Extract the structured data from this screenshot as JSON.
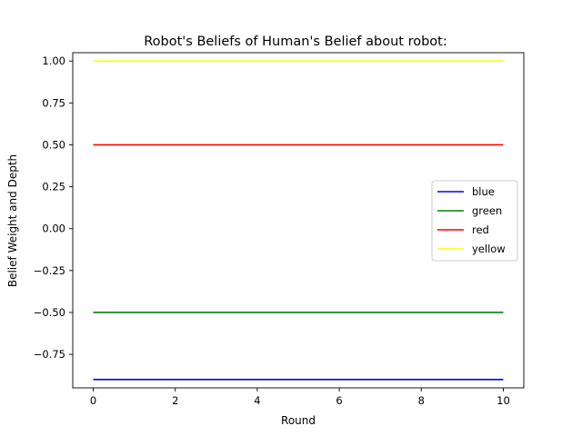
{
  "chart_data": {
    "type": "line",
    "title": "Robot's Beliefs of Human's Belief about robot:",
    "xlabel": "Round",
    "ylabel": "Belief Weight and Depth",
    "xlim": [
      -0.5,
      10.5
    ],
    "ylim": [
      -0.95,
      1.05
    ],
    "x_ticks": [
      0,
      2,
      4,
      6,
      8,
      10
    ],
    "y_ticks": [
      -0.75,
      -0.5,
      -0.25,
      0.0,
      0.25,
      0.5,
      0.75,
      1.0
    ],
    "x_tick_labels": [
      "0",
      "2",
      "4",
      "6",
      "8",
      "10"
    ],
    "y_tick_labels": [
      "−0.75",
      "−0.50",
      "−0.25",
      "0.00",
      "0.25",
      "0.50",
      "0.75",
      "1.00"
    ],
    "grid": false,
    "legend_position": "center-right",
    "x": [
      0,
      1,
      2,
      3,
      4,
      5,
      6,
      7,
      8,
      9,
      10
    ],
    "series": [
      {
        "name": "blue",
        "color": "#0000ff",
        "values": [
          -0.9,
          -0.9,
          -0.9,
          -0.9,
          -0.9,
          -0.9,
          -0.9,
          -0.9,
          -0.9,
          -0.9,
          -0.9
        ]
      },
      {
        "name": "green",
        "color": "#008000",
        "values": [
          -0.5,
          -0.5,
          -0.5,
          -0.5,
          -0.5,
          -0.5,
          -0.5,
          -0.5,
          -0.5,
          -0.5,
          -0.5
        ]
      },
      {
        "name": "red",
        "color": "#ff0000",
        "values": [
          0.5,
          0.5,
          0.5,
          0.5,
          0.5,
          0.5,
          0.5,
          0.5,
          0.5,
          0.5,
          0.5
        ]
      },
      {
        "name": "yellow",
        "color": "#ffff00",
        "values": [
          1.0,
          1.0,
          1.0,
          1.0,
          1.0,
          1.0,
          1.0,
          1.0,
          1.0,
          1.0,
          1.0
        ]
      }
    ]
  }
}
